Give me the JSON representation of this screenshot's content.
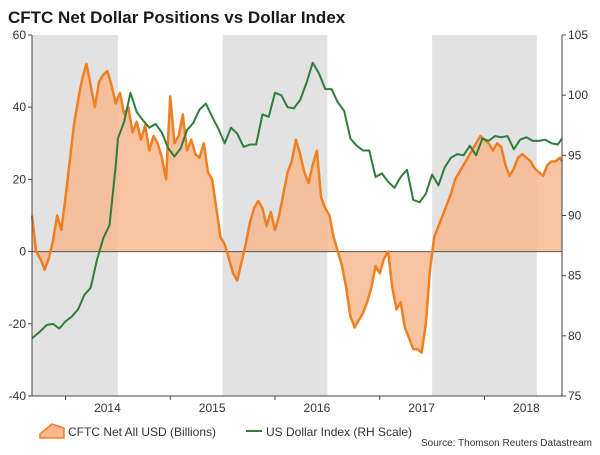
{
  "chart_data": {
    "type": "area+line",
    "title": "CFTC Net Dollar Positions vs Dollar Index",
    "source": "Source: Thomson Reuters Datastream",
    "x_axis": {
      "range": [
        2013.68,
        2018.74
      ],
      "tick_labels": [
        "2014",
        "2015",
        "2016",
        "2017",
        "2018"
      ],
      "tick_positions": [
        2014.0,
        2015.0,
        2016.0,
        2017.0,
        2018.0
      ]
    },
    "y_left": {
      "range": [
        -40,
        60
      ],
      "ticks": [
        -40,
        -20,
        0,
        20,
        40,
        60
      ],
      "tick_labels": [
        "-40",
        "-20",
        "0",
        "20",
        "40",
        "60"
      ]
    },
    "y_right": {
      "label": "RH Scale",
      "range": [
        75,
        105
      ],
      "ticks": [
        75,
        80,
        85,
        90,
        95,
        100,
        105
      ],
      "tick_labels": [
        "75",
        "80",
        "85",
        "90",
        "95",
        "100",
        "105"
      ]
    },
    "shaded_periods": [
      [
        2013.68,
        2014.5
      ],
      [
        2015.5,
        2016.5
      ],
      [
        2017.5,
        2018.5
      ]
    ],
    "legend": {
      "position": "bottom-left",
      "items": [
        "CFTC Net All USD (Billions)",
        "US Dollar Index (RH Scale)"
      ]
    },
    "colors": {
      "cftc_line": "#f07f22",
      "cftc_fill": "#f7b88f",
      "dxy_line": "#2e7d3a",
      "shade": "#e2e2e2",
      "zero_line": "#555555"
    },
    "series": [
      {
        "name": "CFTC Net All USD (Billions)",
        "axis": "left",
        "x": [
          2013.68,
          2013.72,
          2013.76,
          2013.8,
          2013.84,
          2013.88,
          2013.92,
          2013.96,
          2014.0,
          2014.04,
          2014.08,
          2014.12,
          2014.16,
          2014.2,
          2014.24,
          2014.28,
          2014.32,
          2014.36,
          2014.4,
          2014.44,
          2014.48,
          2014.52,
          2014.56,
          2014.6,
          2014.64,
          2014.68,
          2014.72,
          2014.76,
          2014.8,
          2014.84,
          2014.88,
          2014.92,
          2014.96,
          2015.0,
          2015.04,
          2015.08,
          2015.12,
          2015.16,
          2015.2,
          2015.24,
          2015.28,
          2015.32,
          2015.36,
          2015.4,
          2015.44,
          2015.48,
          2015.52,
          2015.56,
          2015.6,
          2015.64,
          2015.68,
          2015.72,
          2015.76,
          2015.8,
          2015.84,
          2015.88,
          2015.92,
          2015.96,
          2016.0,
          2016.04,
          2016.08,
          2016.12,
          2016.16,
          2016.2,
          2016.24,
          2016.28,
          2016.32,
          2016.36,
          2016.4,
          2016.44,
          2016.48,
          2016.52,
          2016.56,
          2016.6,
          2016.64,
          2016.68,
          2016.72,
          2016.76,
          2016.8,
          2016.84,
          2016.88,
          2016.92,
          2016.96,
          2017.0,
          2017.04,
          2017.08,
          2017.12,
          2017.16,
          2017.2,
          2017.24,
          2017.28,
          2017.32,
          2017.36,
          2017.4,
          2017.44,
          2017.48,
          2017.52,
          2017.56,
          2017.6,
          2017.64,
          2017.68,
          2017.72,
          2017.76,
          2017.8,
          2017.84,
          2017.88,
          2017.92,
          2017.96,
          2018.0,
          2018.04,
          2018.08,
          2018.12,
          2018.16,
          2018.2,
          2018.24,
          2018.28,
          2018.32,
          2018.36,
          2018.4,
          2018.44,
          2018.48,
          2018.52,
          2018.56,
          2018.6,
          2018.64,
          2018.68,
          2018.72,
          2018.74
        ],
        "values": [
          10,
          0,
          -2,
          -5,
          -2,
          3,
          10,
          6,
          15,
          25,
          35,
          42,
          48,
          52,
          46,
          40,
          47,
          49,
          50,
          46,
          41,
          44,
          38,
          40,
          33,
          36,
          31,
          35,
          28,
          32,
          30,
          26,
          20,
          43,
          30,
          32,
          38,
          28,
          31,
          27,
          26,
          30,
          22,
          20,
          12,
          4,
          2,
          -2,
          -6,
          -8,
          -3,
          2,
          8,
          12,
          14,
          12,
          7,
          11,
          6,
          10,
          16,
          22,
          25,
          31,
          27,
          22,
          19,
          24,
          28,
          15,
          12,
          10,
          4,
          0,
          -4,
          -10,
          -18,
          -21,
          -19,
          -17,
          -14,
          -10,
          -4,
          -6,
          -2,
          0,
          -10,
          -16,
          -14,
          -21,
          -24,
          -27,
          -27,
          -28,
          -20,
          -5,
          4,
          7,
          10,
          13,
          16,
          20,
          22,
          24,
          26,
          28,
          30,
          32,
          31,
          30,
          28,
          30,
          29,
          24,
          21,
          23,
          26,
          27,
          26,
          25,
          23,
          22,
          21,
          24,
          25,
          25,
          26,
          25
        ]
      },
      {
        "name": "US Dollar Index (RH Scale)",
        "axis": "right",
        "x": [
          2013.68,
          2013.75,
          2013.82,
          2013.88,
          2013.94,
          2014.0,
          2014.06,
          2014.12,
          2014.18,
          2014.24,
          2014.3,
          2014.36,
          2014.42,
          2014.48,
          2014.5,
          2014.56,
          2014.62,
          2014.68,
          2014.74,
          2014.8,
          2014.86,
          2014.92,
          2014.98,
          2015.04,
          2015.1,
          2015.16,
          2015.22,
          2015.28,
          2015.34,
          2015.4,
          2015.46,
          2015.52,
          2015.58,
          2015.64,
          2015.7,
          2015.76,
          2015.82,
          2015.88,
          2015.94,
          2016.0,
          2016.06,
          2016.12,
          2016.18,
          2016.24,
          2016.3,
          2016.36,
          2016.42,
          2016.48,
          2016.54,
          2016.6,
          2016.66,
          2016.72,
          2016.78,
          2016.84,
          2016.9,
          2016.96,
          2017.02,
          2017.08,
          2017.14,
          2017.2,
          2017.26,
          2017.32,
          2017.38,
          2017.44,
          2017.5,
          2017.56,
          2017.62,
          2017.68,
          2017.74,
          2017.8,
          2017.86,
          2017.92,
          2017.98,
          2018.04,
          2018.1,
          2018.16,
          2018.22,
          2018.28,
          2018.34,
          2018.4,
          2018.46,
          2018.52,
          2018.58,
          2018.64,
          2018.7,
          2018.74
        ],
        "values": [
          79.8,
          80.3,
          80.9,
          81.0,
          80.6,
          81.2,
          81.6,
          82.2,
          83.4,
          84.0,
          86.3,
          88.1,
          89.2,
          94.2,
          96.4,
          97.8,
          100.2,
          98.6,
          97.9,
          97.3,
          97.6,
          96.9,
          95.6,
          94.9,
          95.6,
          97.1,
          97.7,
          98.8,
          99.3,
          98.2,
          97.2,
          96.0,
          97.3,
          96.8,
          95.7,
          95.9,
          95.9,
          98.4,
          98.2,
          100.2,
          100.0,
          99.0,
          98.9,
          99.6,
          101.0,
          102.7,
          101.8,
          100.5,
          100.5,
          99.4,
          98.7,
          96.4,
          95.8,
          95.4,
          95.4,
          93.2,
          93.5,
          92.8,
          92.3,
          93.2,
          93.8,
          91.3,
          91.1,
          91.8,
          93.4,
          92.5,
          94.0,
          94.8,
          95.1,
          95.0,
          95.8,
          95.0,
          96.4,
          96.2,
          96.6,
          96.5,
          96.6,
          95.5,
          96.3,
          96.5,
          96.2,
          96.2,
          96.3,
          96.0,
          95.9,
          96.4
        ]
      }
    ]
  }
}
